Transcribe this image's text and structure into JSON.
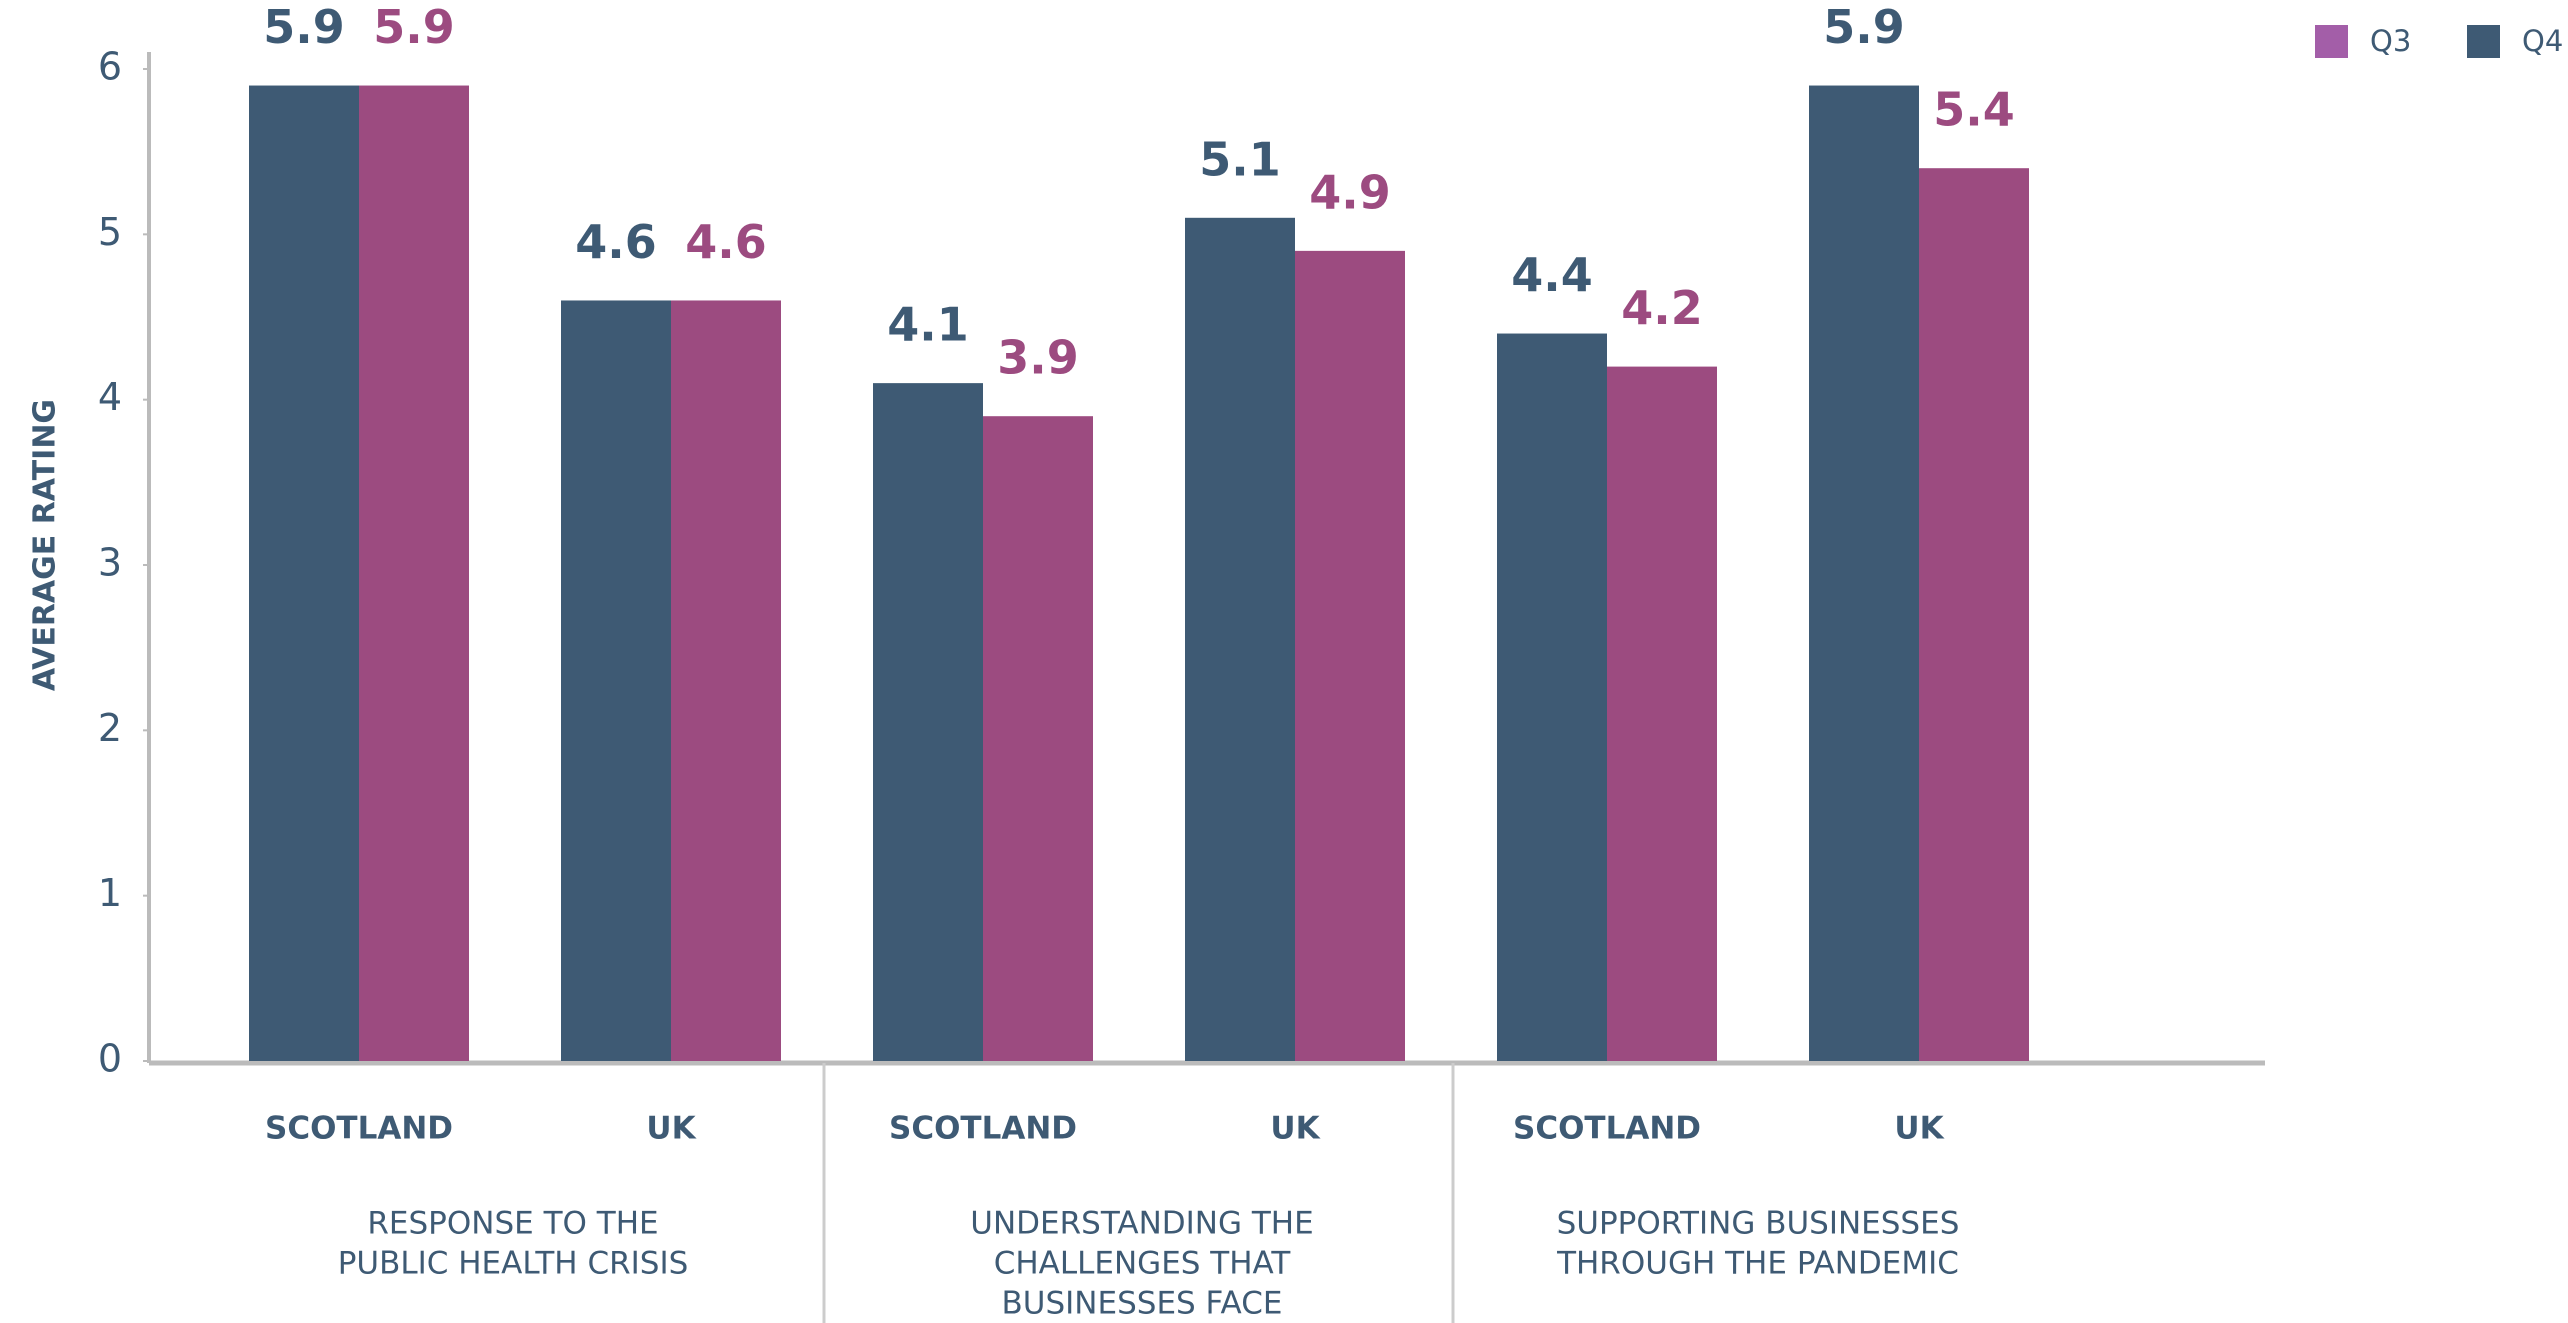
{
  "chart_data": {
    "type": "bar",
    "y_label": "AVERAGE RATING",
    "categories": [
      "SCOTLAND",
      "UK",
      "SCOTLAND",
      "UK",
      "SCOTLAND",
      "UK"
    ],
    "groups": [
      [
        "RESPONSE TO THE",
        "PUBLIC HEALTH CRISIS"
      ],
      [
        "UNDERSTANDING THE",
        "CHALLENGES THAT",
        "BUSINESSES FACE"
      ],
      [
        "SUPPORTING BUSINESSES",
        "THROUGH THE PANDEMIC"
      ]
    ],
    "series": [
      {
        "name": "Q4",
        "color": "#3e5a74",
        "values": [
          5.9,
          4.6,
          4.1,
          5.1,
          4.4,
          5.9
        ]
      },
      {
        "name": "Q3",
        "color": "#9c4b80",
        "values": [
          5.9,
          4.6,
          3.9,
          4.9,
          4.2,
          5.4
        ]
      }
    ],
    "legend_colors": [
      "#a35ea8",
      "#3e5a74"
    ],
    "ylim": [
      0,
      6
    ],
    "yticks": [
      0,
      1,
      2,
      3,
      4,
      5,
      6
    ]
  }
}
